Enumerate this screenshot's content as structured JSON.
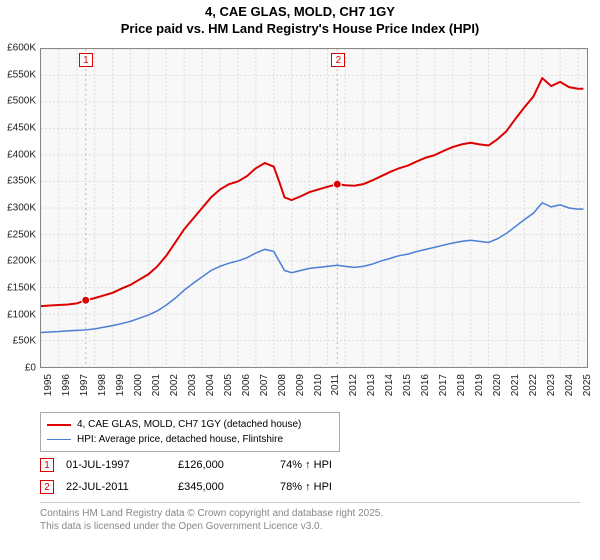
{
  "title_line1": "4, CAE GLAS, MOLD, CH7 1GY",
  "title_line2": "Price paid vs. HM Land Registry's House Price Index (HPI)",
  "chart": {
    "type": "line",
    "background_color": "#f8f8f8",
    "border_color": "#888888",
    "grid_color": "#dddddd",
    "grid_dash": "2,2",
    "ylim": [
      0,
      600000
    ],
    "ytick_step": 50000,
    "ytick_labels": [
      "£0",
      "£50K",
      "£100K",
      "£150K",
      "£200K",
      "£250K",
      "£300K",
      "£350K",
      "£400K",
      "£450K",
      "£500K",
      "£550K",
      "£600K"
    ],
    "xlim": [
      1995,
      2025.5
    ],
    "xtick_step": 1,
    "xtick_labels": [
      "1995",
      "1996",
      "1997",
      "1998",
      "1999",
      "2000",
      "2001",
      "2002",
      "2003",
      "2004",
      "2005",
      "2006",
      "2007",
      "2008",
      "2009",
      "2010",
      "2011",
      "2012",
      "2013",
      "2014",
      "2015",
      "2016",
      "2017",
      "2018",
      "2019",
      "2020",
      "2021",
      "2022",
      "2023",
      "2024",
      "2025"
    ],
    "series": [
      {
        "name": "price_paid",
        "label": "4, CAE GLAS, MOLD, CH7 1GY (detached house)",
        "color": "#dd0000",
        "line_width": 2,
        "data": [
          [
            1995.0,
            115000
          ],
          [
            1995.5,
            116000
          ],
          [
            1996.0,
            117000
          ],
          [
            1996.5,
            118000
          ],
          [
            1997.0,
            120000
          ],
          [
            1997.5,
            126000
          ],
          [
            1998.0,
            130000
          ],
          [
            1998.5,
            135000
          ],
          [
            1999.0,
            140000
          ],
          [
            1999.5,
            148000
          ],
          [
            2000.0,
            155000
          ],
          [
            2000.5,
            165000
          ],
          [
            2001.0,
            175000
          ],
          [
            2001.5,
            190000
          ],
          [
            2002.0,
            210000
          ],
          [
            2002.5,
            235000
          ],
          [
            2003.0,
            260000
          ],
          [
            2003.5,
            280000
          ],
          [
            2004.0,
            300000
          ],
          [
            2004.5,
            320000
          ],
          [
            2005.0,
            335000
          ],
          [
            2005.5,
            345000
          ],
          [
            2006.0,
            350000
          ],
          [
            2006.5,
            360000
          ],
          [
            2007.0,
            375000
          ],
          [
            2007.5,
            385000
          ],
          [
            2008.0,
            378000
          ],
          [
            2008.3,
            350000
          ],
          [
            2008.6,
            320000
          ],
          [
            2009.0,
            315000
          ],
          [
            2009.5,
            322000
          ],
          [
            2010.0,
            330000
          ],
          [
            2010.5,
            335000
          ],
          [
            2011.0,
            340000
          ],
          [
            2011.55,
            345000
          ],
          [
            2012.0,
            343000
          ],
          [
            2012.5,
            342000
          ],
          [
            2013.0,
            345000
          ],
          [
            2013.5,
            352000
          ],
          [
            2014.0,
            360000
          ],
          [
            2014.5,
            368000
          ],
          [
            2015.0,
            375000
          ],
          [
            2015.5,
            380000
          ],
          [
            2016.0,
            388000
          ],
          [
            2016.5,
            395000
          ],
          [
            2017.0,
            400000
          ],
          [
            2017.5,
            408000
          ],
          [
            2018.0,
            415000
          ],
          [
            2018.5,
            420000
          ],
          [
            2019.0,
            423000
          ],
          [
            2019.5,
            420000
          ],
          [
            2020.0,
            418000
          ],
          [
            2020.5,
            430000
          ],
          [
            2021.0,
            445000
          ],
          [
            2021.5,
            468000
          ],
          [
            2022.0,
            490000
          ],
          [
            2022.5,
            510000
          ],
          [
            2023.0,
            545000
          ],
          [
            2023.5,
            530000
          ],
          [
            2024.0,
            538000
          ],
          [
            2024.5,
            528000
          ],
          [
            2025.0,
            525000
          ],
          [
            2025.3,
            525000
          ]
        ]
      },
      {
        "name": "hpi",
        "label": "HPI: Average price, detached house, Flintshire",
        "color": "#4a7fd6",
        "line_width": 1.5,
        "data": [
          [
            1995.0,
            65000
          ],
          [
            1995.5,
            66000
          ],
          [
            1996.0,
            67000
          ],
          [
            1996.5,
            68000
          ],
          [
            1997.0,
            69000
          ],
          [
            1997.5,
            70000
          ],
          [
            1998.0,
            72000
          ],
          [
            1998.5,
            75000
          ],
          [
            1999.0,
            78000
          ],
          [
            1999.5,
            82000
          ],
          [
            2000.0,
            86000
          ],
          [
            2000.5,
            92000
          ],
          [
            2001.0,
            98000
          ],
          [
            2001.5,
            106000
          ],
          [
            2002.0,
            117000
          ],
          [
            2002.5,
            130000
          ],
          [
            2003.0,
            145000
          ],
          [
            2003.5,
            158000
          ],
          [
            2004.0,
            170000
          ],
          [
            2004.5,
            182000
          ],
          [
            2005.0,
            190000
          ],
          [
            2005.5,
            196000
          ],
          [
            2006.0,
            200000
          ],
          [
            2006.5,
            206000
          ],
          [
            2007.0,
            215000
          ],
          [
            2007.5,
            222000
          ],
          [
            2008.0,
            218000
          ],
          [
            2008.3,
            200000
          ],
          [
            2008.6,
            182000
          ],
          [
            2009.0,
            178000
          ],
          [
            2009.5,
            182000
          ],
          [
            2010.0,
            186000
          ],
          [
            2010.5,
            188000
          ],
          [
            2011.0,
            190000
          ],
          [
            2011.55,
            192000
          ],
          [
            2012.0,
            190000
          ],
          [
            2012.5,
            188000
          ],
          [
            2013.0,
            190000
          ],
          [
            2013.5,
            194000
          ],
          [
            2014.0,
            200000
          ],
          [
            2014.5,
            205000
          ],
          [
            2015.0,
            210000
          ],
          [
            2015.5,
            213000
          ],
          [
            2016.0,
            218000
          ],
          [
            2016.5,
            222000
          ],
          [
            2017.0,
            226000
          ],
          [
            2017.5,
            230000
          ],
          [
            2018.0,
            234000
          ],
          [
            2018.5,
            237000
          ],
          [
            2019.0,
            239000
          ],
          [
            2019.5,
            237000
          ],
          [
            2020.0,
            235000
          ],
          [
            2020.5,
            242000
          ],
          [
            2021.0,
            252000
          ],
          [
            2021.5,
            265000
          ],
          [
            2022.0,
            278000
          ],
          [
            2022.5,
            290000
          ],
          [
            2023.0,
            310000
          ],
          [
            2023.5,
            302000
          ],
          [
            2024.0,
            306000
          ],
          [
            2024.5,
            300000
          ],
          [
            2025.0,
            298000
          ],
          [
            2025.3,
            298000
          ]
        ]
      }
    ],
    "sale_markers": [
      {
        "badge": "1",
        "x": 1997.5,
        "y": 126000,
        "point_color": "#dd0000"
      },
      {
        "badge": "2",
        "x": 2011.55,
        "y": 345000,
        "point_color": "#dd0000"
      }
    ],
    "marker_line_color": "#e8a0a0",
    "marker_line_dash": "2,3"
  },
  "legend": {
    "items": [
      {
        "color": "#dd0000",
        "label": "4, CAE GLAS, MOLD, CH7 1GY (detached house)"
      },
      {
        "color": "#4a7fd6",
        "label": "HPI: Average price, detached house, Flintshire"
      }
    ]
  },
  "marker_rows": [
    {
      "badge": "1",
      "date": "01-JUL-1997",
      "price": "£126,000",
      "hpi": "74% ↑ HPI"
    },
    {
      "badge": "2",
      "date": "22-JUL-2011",
      "price": "£345,000",
      "hpi": "78% ↑ HPI"
    }
  ],
  "footer": {
    "line1": "Contains HM Land Registry data © Crown copyright and database right 2025.",
    "line2": "This data is licensed under the Open Government Licence v3.0."
  }
}
